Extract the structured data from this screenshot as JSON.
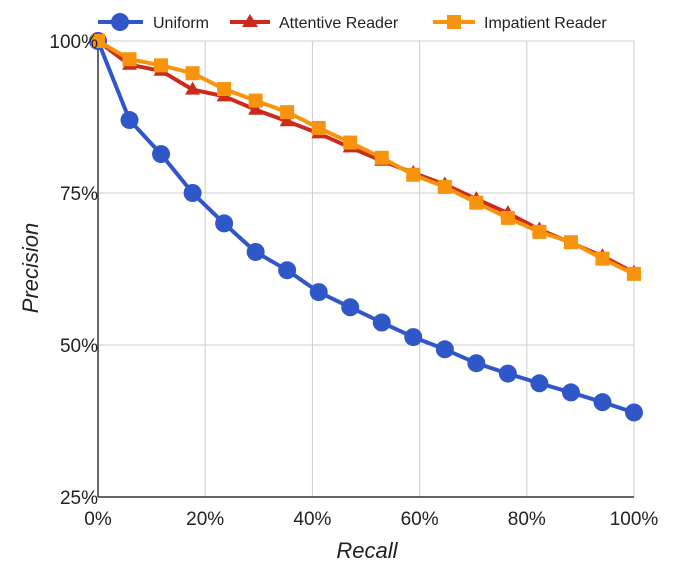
{
  "chart_data": {
    "type": "line",
    "title": "",
    "xlabel": "Recall",
    "ylabel": "Precision",
    "xlim": [
      0,
      100
    ],
    "ylim": [
      25,
      100
    ],
    "x": [
      0,
      5.88,
      11.76,
      17.65,
      23.53,
      29.41,
      35.29,
      41.18,
      47.06,
      52.94,
      58.82,
      64.71,
      70.59,
      76.47,
      82.35,
      88.24,
      94.12,
      100
    ],
    "x_ticks": [
      {
        "value": 0,
        "label": "0%"
      },
      {
        "value": 20,
        "label": "20%"
      },
      {
        "value": 40,
        "label": "40%"
      },
      {
        "value": 60,
        "label": "60%"
      },
      {
        "value": 80,
        "label": "80%"
      },
      {
        "value": 100,
        "label": "100%"
      }
    ],
    "y_ticks": [
      {
        "value": 25,
        "label": "25%"
      },
      {
        "value": 50,
        "label": "50%"
      },
      {
        "value": 75,
        "label": "75%"
      },
      {
        "value": 100,
        "label": "100%"
      }
    ],
    "x_gridlines": [
      0,
      20,
      40,
      60,
      80,
      100
    ],
    "y_gridlines": [
      50,
      75,
      100
    ],
    "legend_position": "top",
    "series": [
      {
        "name": "Uniform",
        "color": "#3057c8",
        "marker": "circle",
        "values": [
          100,
          87.0,
          81.4,
          75.0,
          70.0,
          65.3,
          62.3,
          58.7,
          56.2,
          53.7,
          51.3,
          49.3,
          47.0,
          45.3,
          43.7,
          42.2,
          40.6,
          38.9
        ]
      },
      {
        "name": "Attentive Reader",
        "color": "#cc2a1a",
        "marker": "triangle",
        "values": [
          100,
          96.1,
          95.1,
          92.0,
          90.9,
          88.7,
          86.8,
          84.8,
          82.5,
          80.3,
          78.3,
          76.4,
          74.0,
          71.7,
          69.0,
          66.8,
          64.6,
          61.9
        ]
      },
      {
        "name": "Impatient Reader",
        "color": "#f8930e",
        "marker": "square",
        "values": [
          100,
          97.0,
          96.0,
          94.7,
          92.1,
          90.2,
          88.3,
          85.7,
          83.3,
          80.8,
          78.0,
          76.0,
          73.4,
          70.9,
          68.6,
          66.9,
          64.2,
          61.7
        ]
      }
    ]
  }
}
